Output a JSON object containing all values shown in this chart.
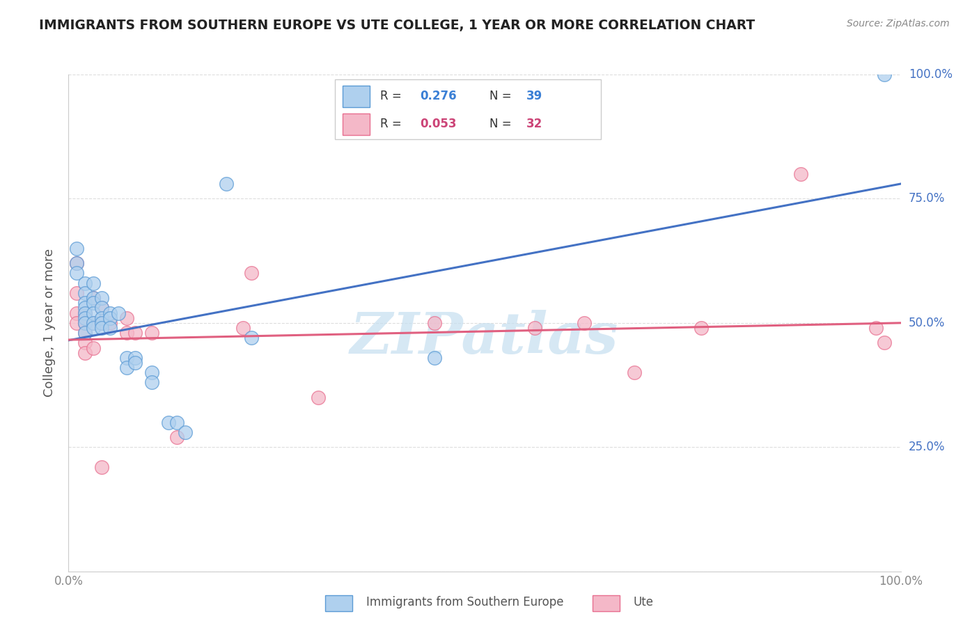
{
  "title": "IMMIGRANTS FROM SOUTHERN EUROPE VS UTE COLLEGE, 1 YEAR OR MORE CORRELATION CHART",
  "source_text": "Source: ZipAtlas.com",
  "ylabel": "College, 1 year or more",
  "xlim": [
    0.0,
    1.0
  ],
  "ylim": [
    0.0,
    1.0
  ],
  "xtick_positions": [
    0.0,
    1.0
  ],
  "xtick_labels": [
    "0.0%",
    "100.0%"
  ],
  "ytick_positions": [
    0.0,
    0.25,
    0.5,
    0.75,
    1.0
  ],
  "ytick_labels_right": [
    "",
    "25.0%",
    "50.0%",
    "75.0%",
    "100.0%"
  ],
  "legend_R_blue": "0.276",
  "legend_N_blue": "39",
  "legend_R_pink": "0.053",
  "legend_N_pink": "32",
  "blue_fill": "#afd0ee",
  "blue_edge": "#5b9bd5",
  "pink_fill": "#f4b8c8",
  "pink_edge": "#e87090",
  "blue_line_color": "#4472c4",
  "pink_line_color": "#e06080",
  "watermark": "ZIPatlas",
  "watermark_color": "#c5dff0",
  "blue_scatter_x": [
    0.01,
    0.01,
    0.01,
    0.02,
    0.02,
    0.02,
    0.02,
    0.02,
    0.02,
    0.02,
    0.02,
    0.03,
    0.03,
    0.03,
    0.03,
    0.03,
    0.03,
    0.04,
    0.04,
    0.04,
    0.04,
    0.04,
    0.05,
    0.05,
    0.05,
    0.06,
    0.07,
    0.07,
    0.08,
    0.08,
    0.1,
    0.1,
    0.12,
    0.13,
    0.14,
    0.22,
    0.44,
    0.98,
    0.19
  ],
  "blue_scatter_y": [
    0.65,
    0.62,
    0.6,
    0.58,
    0.56,
    0.54,
    0.53,
    0.52,
    0.51,
    0.5,
    0.48,
    0.58,
    0.55,
    0.54,
    0.52,
    0.5,
    0.49,
    0.55,
    0.53,
    0.51,
    0.5,
    0.49,
    0.52,
    0.51,
    0.49,
    0.52,
    0.43,
    0.41,
    0.43,
    0.42,
    0.4,
    0.38,
    0.3,
    0.3,
    0.28,
    0.47,
    0.43,
    1.0,
    0.78
  ],
  "pink_scatter_x": [
    0.01,
    0.01,
    0.01,
    0.01,
    0.02,
    0.02,
    0.02,
    0.02,
    0.02,
    0.03,
    0.03,
    0.03,
    0.04,
    0.04,
    0.04,
    0.05,
    0.07,
    0.07,
    0.08,
    0.1,
    0.21,
    0.22,
    0.3,
    0.44,
    0.56,
    0.62,
    0.68,
    0.76,
    0.88,
    0.97,
    0.98,
    0.13
  ],
  "pink_scatter_y": [
    0.62,
    0.56,
    0.52,
    0.5,
    0.52,
    0.5,
    0.48,
    0.46,
    0.44,
    0.55,
    0.5,
    0.45,
    0.53,
    0.5,
    0.21,
    0.5,
    0.51,
    0.48,
    0.48,
    0.48,
    0.49,
    0.6,
    0.35,
    0.5,
    0.49,
    0.5,
    0.4,
    0.49,
    0.8,
    0.49,
    0.46,
    0.27
  ],
  "blue_line_x": [
    0.0,
    1.0
  ],
  "blue_line_y": [
    0.465,
    0.78
  ],
  "pink_line_x": [
    0.0,
    1.0
  ],
  "pink_line_y": [
    0.466,
    0.5
  ],
  "bg_color": "#ffffff",
  "grid_color": "#dddddd",
  "title_color": "#222222",
  "tick_color": "#888888",
  "right_label_color": "#4472c4"
}
